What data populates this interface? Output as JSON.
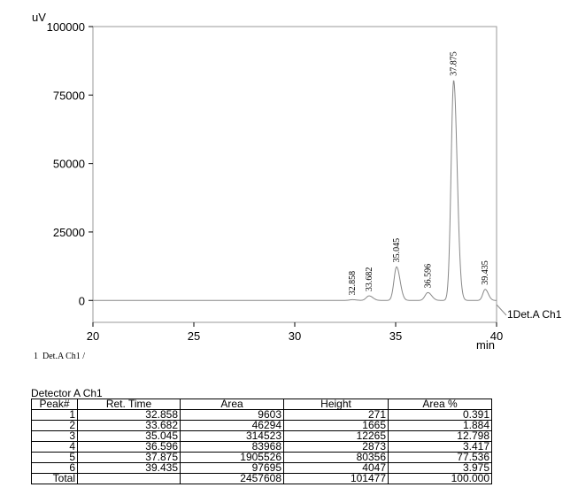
{
  "chart_data": {
    "type": "line",
    "y_unit": "uV",
    "x_unit": "min",
    "xlim": [
      20,
      40
    ],
    "ylim": [
      -8000,
      100000
    ],
    "x_ticks": [
      "20",
      "25",
      "30",
      "35",
      "40"
    ],
    "y_ticks": [
      "0",
      "25000",
      "50000",
      "75000",
      "100000"
    ],
    "baseline": 0,
    "peaks": [
      {
        "rt": 32.858,
        "label": "32.858",
        "height": 271,
        "width": 0.35
      },
      {
        "rt": 33.682,
        "label": "33.682",
        "height": 1665,
        "width": 0.33
      },
      {
        "rt": 35.045,
        "label": "35.045",
        "height": 12265,
        "width": 0.3
      },
      {
        "rt": 36.596,
        "label": "36.596",
        "height": 2873,
        "width": 0.33
      },
      {
        "rt": 37.875,
        "label": "37.875",
        "height": 80356,
        "width": 0.3
      },
      {
        "rt": 39.435,
        "label": "39.435",
        "height": 4047,
        "width": 0.27
      }
    ],
    "legend": "1Det.A Ch1",
    "grid": false
  },
  "footnote": "1  Det.A Ch1 /",
  "table": {
    "title": "Detector A Ch1",
    "headers": [
      "Peak#",
      "Ret. Time",
      "Area",
      "Height",
      "Area %"
    ],
    "rows": [
      [
        "1",
        "32.858",
        "9603",
        "271",
        "0.391"
      ],
      [
        "2",
        "33.682",
        "46294",
        "1665",
        "1.884"
      ],
      [
        "3",
        "35.045",
        "314523",
        "12265",
        "12.798"
      ],
      [
        "4",
        "36.596",
        "83968",
        "2873",
        "3.417"
      ],
      [
        "5",
        "37.875",
        "1905526",
        "80356",
        "77.536"
      ],
      [
        "6",
        "39.435",
        "97695",
        "4047",
        "3.975"
      ]
    ],
    "total": [
      "Total",
      "",
      "2457608",
      "101477",
      "100.000"
    ]
  }
}
